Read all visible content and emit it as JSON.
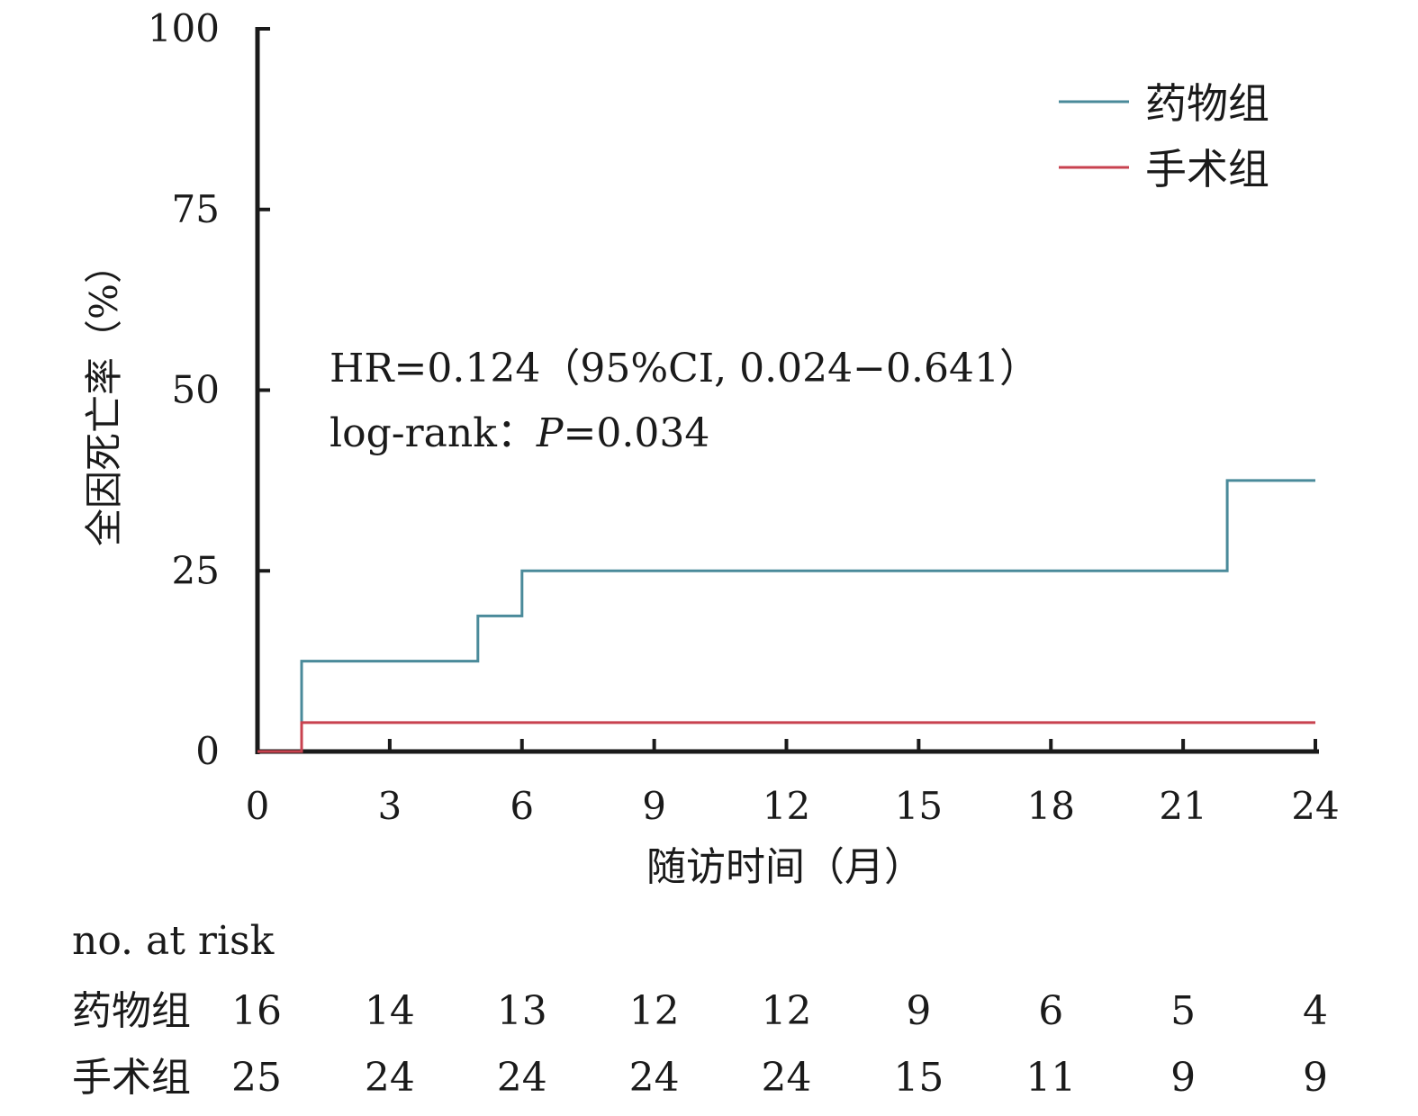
{
  "chart_data": {
    "type": "line",
    "subtype": "kaplan-meier step",
    "ylabel": "全因死亡率（%）",
    "xlabel": "随访时间（月）",
    "xlim": [
      0,
      24
    ],
    "ylim": [
      0,
      100
    ],
    "xticks": [
      "0",
      "3",
      "6",
      "9",
      "12",
      "15",
      "18",
      "21",
      "24"
    ],
    "yticks": [
      "0",
      "25",
      "50",
      "75",
      "100"
    ],
    "grid": false,
    "legend_position": "top-right",
    "series": [
      {
        "name": "药物组",
        "color": "#4a8a9a",
        "points": [
          [
            0,
            0
          ],
          [
            1,
            0
          ],
          [
            1,
            12.5
          ],
          [
            5,
            12.5
          ],
          [
            5,
            18.75
          ],
          [
            6,
            18.75
          ],
          [
            6,
            25
          ],
          [
            22,
            25
          ],
          [
            22,
            37.5
          ],
          [
            24,
            37.5
          ]
        ]
      },
      {
        "name": "手术组",
        "color": "#c8424f",
        "points": [
          [
            0,
            0
          ],
          [
            1,
            0
          ],
          [
            1,
            4
          ],
          [
            24,
            4
          ]
        ]
      }
    ],
    "annotations": {
      "hr_line": "HR=0.124（95%CI, 0.024−0.641）",
      "logrank_prefix": "log-rank：",
      "logrank_p": "P",
      "logrank_value": "=0.034"
    },
    "risk_table": {
      "title": "no. at risk",
      "timepoints": [
        0,
        3,
        6,
        9,
        12,
        15,
        18,
        21,
        24
      ],
      "rows": [
        {
          "label": "药物组",
          "values": [
            "16",
            "14",
            "13",
            "12",
            "12",
            "9",
            "6",
            "5",
            "4"
          ]
        },
        {
          "label": "手术组",
          "values": [
            "25",
            "24",
            "24",
            "24",
            "24",
            "15",
            "11",
            "9",
            "9"
          ]
        }
      ]
    }
  }
}
